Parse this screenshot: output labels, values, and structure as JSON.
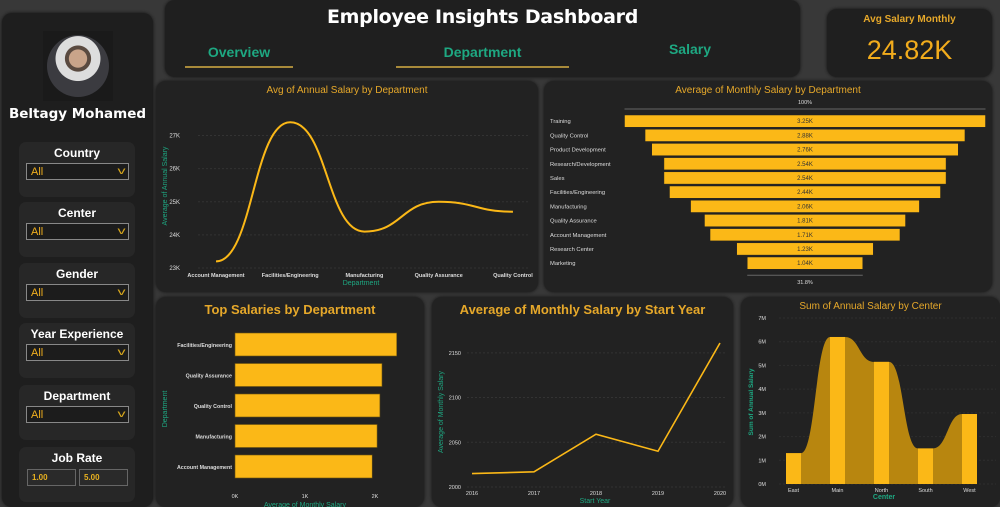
{
  "colors": {
    "accent": "#fbb817",
    "axis_label": "#1ea882",
    "panel": "#222222"
  },
  "sidebar": {
    "user_name": "Beltagy Mohamed",
    "filters": [
      {
        "label": "Country",
        "value": "All"
      },
      {
        "label": "Center",
        "value": "All"
      },
      {
        "label": "Gender",
        "value": "All"
      },
      {
        "label": "Year Experience",
        "value": "All"
      },
      {
        "label": "Department",
        "value": "All"
      }
    ],
    "job_rate": {
      "label": "Job Rate",
      "min": "1.00",
      "max": "5.00"
    }
  },
  "header": {
    "title": "Employee Insights Dashboard",
    "tabs": [
      {
        "label": "Overview"
      },
      {
        "label": "Department"
      },
      {
        "label": "Salary"
      }
    ]
  },
  "kpi": {
    "label": "Avg Salary Monthly",
    "value": "24.82K"
  },
  "chart_data": [
    {
      "type": "line",
      "title": "Avg of Annual Salary by Department",
      "xlabel": "Department",
      "ylabel": "Average of Annual Salary",
      "categories": [
        "Account Management",
        "Facilities/Engineering",
        "Manufacturing",
        "Quality Assurance",
        "Quality Control"
      ],
      "values": [
        23200,
        27400,
        24100,
        25000,
        24700
      ],
      "ylim": [
        23000,
        27500
      ],
      "yticks": [
        "23K",
        "24K",
        "25K",
        "26K",
        "27K"
      ],
      "smooth": true,
      "grid": true
    },
    {
      "type": "bar",
      "orientation": "funnel",
      "title": "Average of Monthly Salary by Department",
      "categories": [
        "Training",
        "Quality Control",
        "Product Development",
        "Research/Development",
        "Sales",
        "Facilities/Engineering",
        "Manufacturing",
        "Quality Assurance",
        "Account Management",
        "Research Center",
        "Marketing"
      ],
      "values": [
        3250,
        2880,
        2760,
        2540,
        2540,
        2440,
        2060,
        1810,
        1710,
        1230,
        1040
      ],
      "labels": [
        "3.25K",
        "2.88K",
        "2.76K",
        "2.54K",
        "2.54K",
        "2.44K",
        "2.06K",
        "1.81K",
        "1.71K",
        "1.23K",
        "1.04K"
      ],
      "top_label": "100%",
      "bottom_label": "31.8%"
    },
    {
      "type": "bar",
      "orientation": "horizontal",
      "title": "Top Salaries by Department",
      "xlabel": "Average of Monthly Salary",
      "ylabel": "Department",
      "categories": [
        "Facilities/Engineering",
        "Quality Assurance",
        "Quality Control",
        "Manufacturing",
        "Account Management"
      ],
      "values": [
        2310,
        2100,
        2070,
        2030,
        1960
      ],
      "xlim": [
        0,
        2400
      ],
      "xticks": [
        "0K",
        "1K",
        "2K"
      ]
    },
    {
      "type": "line",
      "title": "Average of Monthly Salary by Start Year",
      "xlabel": "Start Year",
      "ylabel": "Average of Monthly Salary",
      "categories": [
        "2016",
        "2017",
        "2018",
        "2019",
        "2020"
      ],
      "values": [
        2015,
        2017,
        2059,
        2040,
        2161
      ],
      "ylim": [
        2000,
        2165
      ],
      "yticks": [
        "2000",
        "2050",
        "2100",
        "2150"
      ],
      "grid": true
    },
    {
      "type": "bar",
      "title": "Sum of Annual Salary by Center",
      "xlabel": "Center",
      "ylabel": "Sum of Annual Salary",
      "categories": [
        "East",
        "Main",
        "North",
        "South",
        "West"
      ],
      "values": [
        1.3,
        6.2,
        5.15,
        1.5,
        2.95
      ],
      "unit": "M",
      "ylim": [
        0,
        7
      ],
      "yticks": [
        "0M",
        "1M",
        "2M",
        "3M",
        "4M",
        "5M",
        "6M",
        "7M"
      ],
      "ribbon": true
    }
  ]
}
